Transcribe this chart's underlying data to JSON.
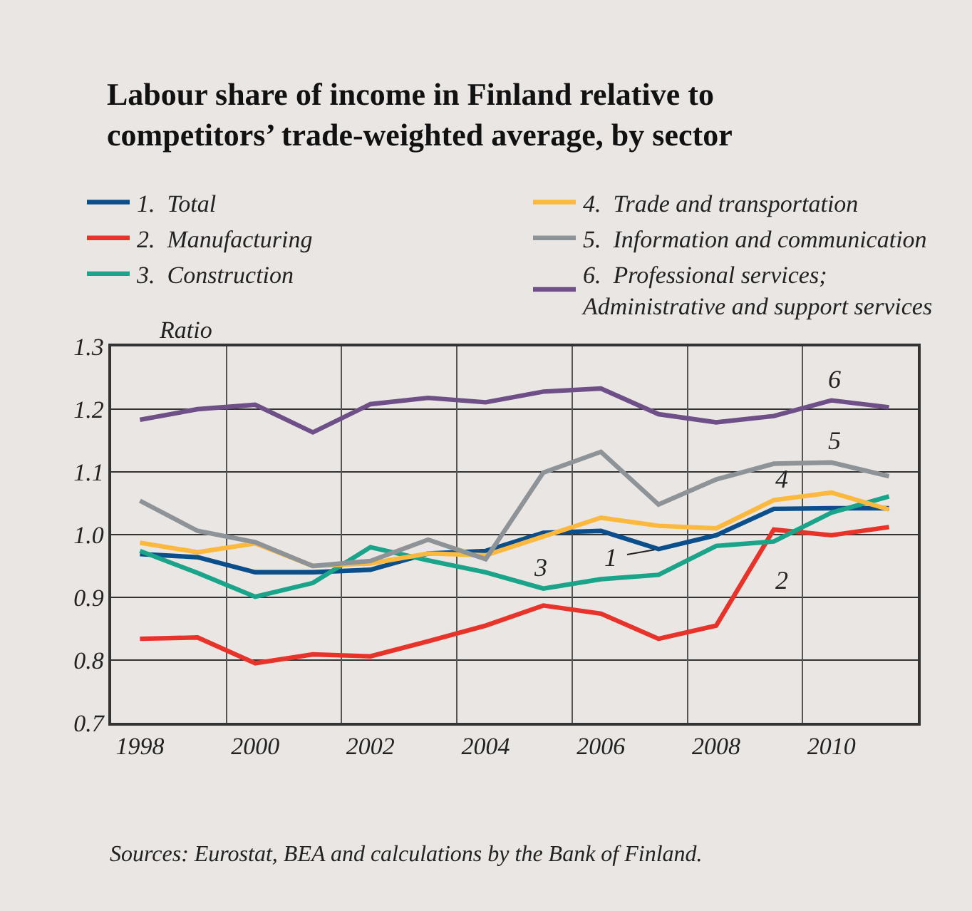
{
  "chart_data": {
    "type": "line",
    "title": "Labour share of income in Finland relative to\ncompetitors’ trade-weighted average, by sector",
    "ylabel": "Ratio",
    "x": [
      1998,
      1999,
      2000,
      2001,
      2002,
      2003,
      2004,
      2005,
      2006,
      2007,
      2008,
      2009,
      2010,
      2011
    ],
    "series": [
      {
        "name": "1.  Total",
        "color": "#0a4f8c",
        "values": [
          0.969,
          0.964,
          0.94,
          0.94,
          0.944,
          0.97,
          0.974,
          1.003,
          1.006,
          0.977,
          0.999,
          1.041,
          1.042,
          1.042
        ]
      },
      {
        "name": "2.  Manufacturing",
        "color": "#e8332a",
        "values": [
          0.834,
          0.836,
          0.795,
          0.809,
          0.806,
          0.83,
          0.855,
          0.887,
          0.874,
          0.834,
          0.855,
          1.008,
          0.999,
          1.012
        ]
      },
      {
        "name": "3.  Construction",
        "color": "#1aa58a",
        "values": [
          0.974,
          0.939,
          0.901,
          0.923,
          0.98,
          0.959,
          0.94,
          0.914,
          0.929,
          0.936,
          0.982,
          0.989,
          1.035,
          1.061
        ]
      },
      {
        "name": "4.  Trade and transportation",
        "color": "#fdb93e",
        "values": [
          0.987,
          0.972,
          0.986,
          0.95,
          0.954,
          0.97,
          0.967,
          0.997,
          1.027,
          1.014,
          1.01,
          1.055,
          1.067,
          1.04
        ]
      },
      {
        "name": "5.  Information and communication",
        "color": "#8e9398",
        "values": [
          1.054,
          1.006,
          0.988,
          0.95,
          0.958,
          0.992,
          0.961,
          1.099,
          1.132,
          1.048,
          1.088,
          1.113,
          1.115,
          1.093
        ]
      },
      {
        "name": "6.  Professional services;\nAdministrative and support services",
        "color": "#6e4f87",
        "values": [
          1.183,
          1.2,
          1.207,
          1.163,
          1.208,
          1.218,
          1.211,
          1.228,
          1.233,
          1.192,
          1.179,
          1.189,
          1.214,
          1.203
        ]
      }
    ],
    "xlim": [
      1997.5,
      2011.5
    ],
    "xticks": [
      1998,
      2000,
      2002,
      2004,
      2006,
      2008,
      2010,
      {
        "value": 1999.5,
        "label": null
      },
      {
        "value": 2001.5,
        "label": null
      },
      {
        "value": 2003.5,
        "label": null
      },
      {
        "value": 2005.5,
        "label": null
      },
      {
        "value": 2007.5,
        "label": null
      },
      {
        "value": 2009.5,
        "label": null
      }
    ],
    "ylim": [
      0.7,
      1.3
    ],
    "yticks": [
      0.7,
      0.8,
      0.9,
      {
        "value": 1.0,
        "label": "1.0"
      },
      1.1,
      1.2,
      1.3
    ],
    "grid": true,
    "legend": "top",
    "marker": "none",
    "line_style": "solid",
    "annotations": [
      {
        "text": "1",
        "x": 2007,
        "y": 0.977
      },
      {
        "text": "2",
        "x": 2009,
        "y": 1.008
      },
      {
        "text": "3",
        "x": 2005,
        "y": 0.914
      },
      {
        "text": "4",
        "x": 2009,
        "y": 1.055
      },
      {
        "text": "5",
        "x": 2010,
        "y": 1.115
      },
      {
        "text": "6",
        "x": 2010,
        "y": 1.214
      },
      "Sources: Eurostat, BEA and calculations by the Bank of Finland."
    ]
  }
}
